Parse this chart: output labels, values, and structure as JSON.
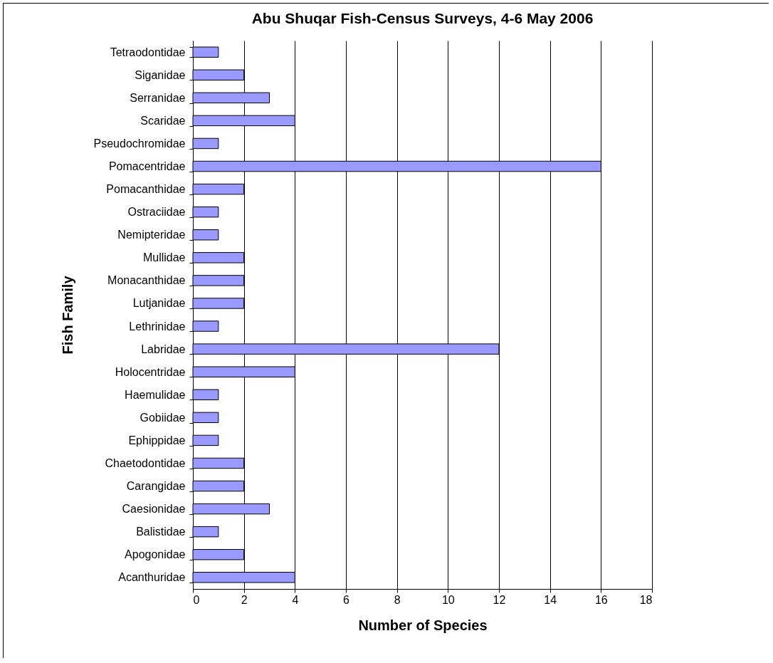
{
  "chart_data": {
    "type": "bar",
    "orientation": "horizontal",
    "title": "Abu Shuqar Fish-Census Surveys, 4-6 May 2006",
    "xlabel": "Number of Species",
    "ylabel": "Fish Family",
    "categories": [
      "Tetraodontidae",
      "Siganidae",
      "Serranidae",
      "Scaridae",
      "Pseudochromidae",
      "Pomacentridae",
      "Pomacanthidae",
      "Ostraciidae",
      "Nemipteridae",
      "Mullidae",
      "Monacanthidae",
      "Lutjanidae",
      "Lethrinidae",
      "Labridae",
      "Holocentridae",
      "Haemulidae",
      "Gobiidae",
      "Ephippidae",
      "Chaetodontidae",
      "Carangidae",
      "Caesionidae",
      "Balistidae",
      "Apogonidae",
      "Acanthuridae"
    ],
    "values": [
      1,
      2,
      3,
      4,
      1,
      16,
      2,
      1,
      1,
      2,
      2,
      2,
      1,
      12,
      4,
      1,
      1,
      1,
      2,
      2,
      3,
      1,
      2,
      4
    ],
    "color": "#9999ff",
    "xlim": [
      0,
      18
    ],
    "xticks": [
      0,
      2,
      4,
      6,
      8,
      10,
      12,
      14,
      16,
      18
    ],
    "grid": "x"
  }
}
